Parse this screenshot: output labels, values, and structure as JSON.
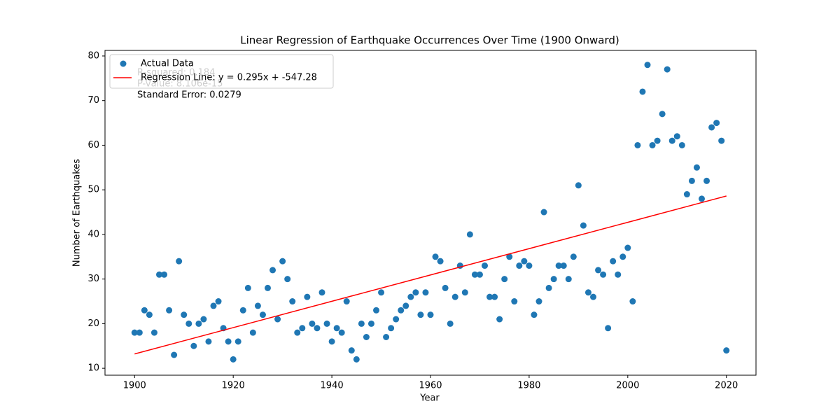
{
  "chart_data": {
    "type": "scatter",
    "title": "Linear Regression of Earthquake Occurrences Over Time (1900 Onward)",
    "x_label": "Year",
    "y_label": "Number of Earthquakes",
    "xlim": [
      1894,
      2026
    ],
    "ylim": [
      8.45,
      81.25
    ],
    "xticks": [
      1900,
      1920,
      1940,
      1960,
      1980,
      2000,
      2020
    ],
    "yticks": [
      10,
      20,
      30,
      40,
      50,
      60,
      70,
      80
    ],
    "grid": false,
    "legend": "upper left",
    "series": [
      {
        "name": "Actual Data",
        "type": "scatter",
        "color": "#1f77b4",
        "x": [
          1900,
          1901,
          1902,
          1903,
          1904,
          1905,
          1906,
          1907,
          1908,
          1909,
          1910,
          1911,
          1912,
          1913,
          1914,
          1915,
          1916,
          1917,
          1918,
          1919,
          1920,
          1921,
          1922,
          1923,
          1924,
          1925,
          1926,
          1927,
          1928,
          1929,
          1930,
          1931,
          1932,
          1933,
          1934,
          1935,
          1936,
          1937,
          1938,
          1939,
          1940,
          1941,
          1942,
          1943,
          1944,
          1945,
          1946,
          1947,
          1948,
          1949,
          1950,
          1951,
          1952,
          1953,
          1954,
          1955,
          1956,
          1957,
          1958,
          1959,
          1960,
          1961,
          1962,
          1963,
          1964,
          1965,
          1966,
          1967,
          1968,
          1969,
          1970,
          1971,
          1972,
          1973,
          1974,
          1975,
          1976,
          1977,
          1978,
          1979,
          1980,
          1981,
          1982,
          1983,
          1984,
          1985,
          1986,
          1987,
          1988,
          1989,
          1990,
          1991,
          1992,
          1993,
          1994,
          1995,
          1996,
          1997,
          1998,
          1999,
          2000,
          2001,
          2002,
          2003,
          2004,
          2005,
          2006,
          2007,
          2008,
          2009,
          2010,
          2011,
          2012,
          2013,
          2014,
          2015,
          2016,
          2017,
          2018,
          2019,
          2020
        ],
        "values": [
          18,
          18,
          23,
          22,
          18,
          31,
          31,
          23,
          13,
          34,
          22,
          20,
          15,
          20,
          21,
          16,
          24,
          25,
          19,
          16,
          12,
          16,
          23,
          28,
          18,
          24,
          22,
          28,
          32,
          21,
          34,
          30,
          25,
          18,
          19,
          26,
          20,
          19,
          27,
          20,
          16,
          19,
          18,
          25,
          14,
          12,
          20,
          17,
          20,
          23,
          27,
          17,
          19,
          21,
          23,
          24,
          26,
          27,
          22,
          27,
          22,
          35,
          34,
          28,
          20,
          26,
          33,
          27,
          40,
          31,
          31,
          33,
          26,
          26,
          21,
          30,
          35,
          25,
          33,
          34,
          33,
          22,
          25,
          45,
          28,
          30,
          33,
          33,
          30,
          35,
          51,
          42,
          27,
          26,
          32,
          31,
          19,
          34,
          31,
          35,
          37,
          25,
          60,
          72,
          78,
          60,
          61,
          67,
          77,
          61,
          62,
          60,
          49,
          52,
          55,
          48,
          52,
          64,
          65,
          61,
          14
        ]
      },
      {
        "name": "Regression Line: y = 0.295x + -547.28",
        "type": "line",
        "color": "#ff0000",
        "x": [
          1900,
          2020
        ],
        "values": [
          13.22,
          48.62
        ]
      }
    ],
    "annotations": [
      {
        "text": "R-squared: 0.184",
        "color": "#0000ff"
      },
      {
        "text": "P-value: 8.106e-15",
        "color": "#0000ff"
      },
      {
        "text": "Standard Error: 0.0279",
        "color": "#0000ff"
      }
    ]
  }
}
